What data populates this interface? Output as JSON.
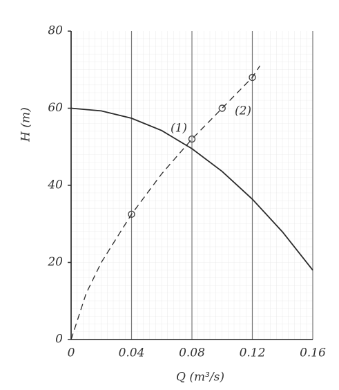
{
  "chart_data": {
    "type": "line",
    "x_label": "Q (m³/s)",
    "y_label": "H (m)",
    "annotations": [
      "(1)",
      "(2)"
    ],
    "xlim": [
      0,
      0.16
    ],
    "xticks": [
      0,
      0.04,
      0.08,
      0.12,
      0.16
    ],
    "ylim": [
      0,
      80
    ],
    "yticks": [
      0,
      20,
      40,
      60,
      80
    ],
    "grid": true,
    "series": [
      {
        "color": "#2a2a2a",
        "dashed": false,
        "markers": false,
        "x": [
          0,
          0.02,
          0.04,
          0.06,
          0.08,
          0.1,
          0.12,
          0.14,
          0.16
        ],
        "values": [
          60,
          59.3,
          57.4,
          54.2,
          49.5,
          43.6,
          36.4,
          27.9,
          18
        ]
      },
      {
        "color": "#2a2a2a",
        "dashed": true,
        "markers": false,
        "x": [
          0,
          0.01,
          0.02,
          0.04,
          0.06,
          0.08,
          0.1,
          0.12,
          0.125
        ],
        "values": [
          0,
          12,
          20,
          32.5,
          43,
          52,
          60,
          68,
          71
        ]
      },
      {
        "color": "#444444",
        "dashed": false,
        "markers": true,
        "x": [
          0.04,
          0.08,
          0.1,
          0.12
        ],
        "values": [
          32.5,
          52,
          60,
          68
        ]
      }
    ]
  }
}
